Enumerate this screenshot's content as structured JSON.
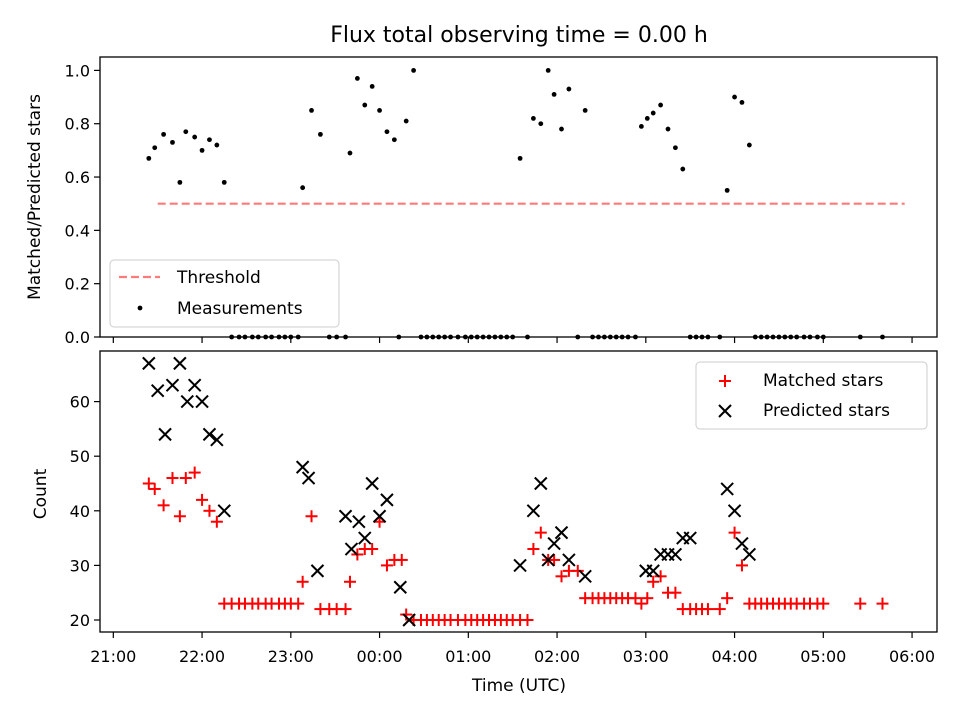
{
  "chart_data": [
    {
      "type": "scatter",
      "title": "Flux total observing time = 0.00 h",
      "ylabel": "Matched/Predicted stars",
      "xlabel": "",
      "xlim": [
        "21:00",
        "06:00"
      ],
      "ylim": [
        0,
        1.05
      ],
      "yticks": [
        "0.0",
        "0.2",
        "0.4",
        "0.6",
        "0.8",
        "1.0"
      ],
      "legend": {
        "placement": "lower-left",
        "entries": [
          "Threshold",
          "Measurements"
        ]
      },
      "threshold": {
        "name": "Threshold",
        "y": 0.5,
        "x": [
          "21:30",
          "05:55"
        ],
        "color": "#ff7a7a",
        "style": "dashed"
      },
      "series": [
        {
          "name": "Measurements",
          "color": "#000000",
          "marker": "dot",
          "points": [
            [
              "21:24",
              0.67
            ],
            [
              "21:28",
              0.71
            ],
            [
              "21:34",
              0.76
            ],
            [
              "21:40",
              0.73
            ],
            [
              "21:45",
              0.58
            ],
            [
              "21:49",
              0.77
            ],
            [
              "21:55",
              0.75
            ],
            [
              "22:00",
              0.7
            ],
            [
              "22:05",
              0.74
            ],
            [
              "22:10",
              0.72
            ],
            [
              "22:15",
              0.58
            ],
            [
              "22:20",
              0
            ],
            [
              "22:25",
              0
            ],
            [
              "22:29",
              0
            ],
            [
              "22:34",
              0
            ],
            [
              "22:38",
              0
            ],
            [
              "22:43",
              0
            ],
            [
              "22:47",
              0
            ],
            [
              "22:52",
              0
            ],
            [
              "22:56",
              0
            ],
            [
              "23:00",
              0
            ],
            [
              "23:05",
              0
            ],
            [
              "23:08",
              0.56
            ],
            [
              "23:14",
              0.85
            ],
            [
              "23:20",
              0.76
            ],
            [
              "23:26",
              0
            ],
            [
              "23:31",
              0
            ],
            [
              "23:37",
              0
            ],
            [
              "23:40",
              0.69
            ],
            [
              "23:45",
              0.97
            ],
            [
              "23:50",
              0.87
            ],
            [
              "23:55",
              0.94
            ],
            [
              "00:00",
              0.85
            ],
            [
              "00:05",
              0.77
            ],
            [
              "00:10",
              0.74
            ],
            [
              "00:18",
              0.81
            ],
            [
              "00:23",
              1.0
            ],
            [
              "00:13",
              0
            ],
            [
              "00:28",
              0
            ],
            [
              "00:32",
              0
            ],
            [
              "00:36",
              0
            ],
            [
              "00:40",
              0
            ],
            [
              "00:44",
              0
            ],
            [
              "00:48",
              0
            ],
            [
              "00:53",
              0
            ],
            [
              "00:58",
              0
            ],
            [
              "01:02",
              0
            ],
            [
              "01:06",
              0
            ],
            [
              "01:10",
              0
            ],
            [
              "01:14",
              0
            ],
            [
              "01:18",
              0
            ],
            [
              "01:22",
              0
            ],
            [
              "01:26",
              0
            ],
            [
              "01:30",
              0
            ],
            [
              "01:35",
              0.67
            ],
            [
              "01:40",
              0
            ],
            [
              "01:44",
              0.82
            ],
            [
              "01:49",
              0.8
            ],
            [
              "01:54",
              1.0
            ],
            [
              "01:58",
              0.91
            ],
            [
              "02:03",
              0.78
            ],
            [
              "02:08",
              0.93
            ],
            [
              "02:14",
              0
            ],
            [
              "02:19",
              0.85
            ],
            [
              "02:24",
              0
            ],
            [
              "02:28",
              0
            ],
            [
              "02:32",
              0
            ],
            [
              "02:36",
              0
            ],
            [
              "02:40",
              0
            ],
            [
              "02:44",
              0
            ],
            [
              "02:48",
              0
            ],
            [
              "02:53",
              0
            ],
            [
              "02:57",
              0.79
            ],
            [
              "03:01",
              0.82
            ],
            [
              "03:05",
              0.84
            ],
            [
              "03:10",
              0.87
            ],
            [
              "03:15",
              0.78
            ],
            [
              "03:20",
              0.71
            ],
            [
              "03:25",
              0.63
            ],
            [
              "03:30",
              0
            ],
            [
              "03:34",
              0
            ],
            [
              "03:38",
              0
            ],
            [
              "03:42",
              0
            ],
            [
              "03:50",
              0
            ],
            [
              "03:55",
              0.55
            ],
            [
              "04:00",
              0.9
            ],
            [
              "04:05",
              0.88
            ],
            [
              "04:10",
              0.72
            ],
            [
              "04:14",
              0
            ],
            [
              "04:18",
              0
            ],
            [
              "04:22",
              0
            ],
            [
              "04:26",
              0
            ],
            [
              "04:30",
              0
            ],
            [
              "04:34",
              0
            ],
            [
              "04:38",
              0
            ],
            [
              "04:42",
              0
            ],
            [
              "04:47",
              0
            ],
            [
              "04:51",
              0
            ],
            [
              "04:56",
              0
            ],
            [
              "05:00",
              0
            ],
            [
              "05:25",
              0
            ],
            [
              "05:40",
              0
            ]
          ]
        }
      ]
    },
    {
      "type": "scatter",
      "title": "",
      "xlabel": "Time (UTC)",
      "ylabel": "Count",
      "xlim": [
        "21:00",
        "06:00"
      ],
      "ylim": [
        18,
        68
      ],
      "xticks": [
        "21:00",
        "22:00",
        "23:00",
        "00:00",
        "01:00",
        "02:00",
        "03:00",
        "04:00",
        "05:00",
        "06:00"
      ],
      "yticks": [
        "20",
        "30",
        "40",
        "50",
        "60"
      ],
      "legend": {
        "placement": "top-right",
        "entries": [
          "Matched stars",
          "Predicted stars"
        ]
      },
      "series": [
        {
          "name": "Matched stars",
          "color": "#ff0000",
          "marker": "plus",
          "points": [
            [
              "21:24",
              45
            ],
            [
              "21:28",
              44
            ],
            [
              "21:34",
              41
            ],
            [
              "21:40",
              46
            ],
            [
              "21:45",
              39
            ],
            [
              "21:49",
              46
            ],
            [
              "21:55",
              47
            ],
            [
              "22:00",
              42
            ],
            [
              "22:05",
              40
            ],
            [
              "22:10",
              38
            ],
            [
              "22:15",
              23
            ],
            [
              "22:20",
              23
            ],
            [
              "22:25",
              23
            ],
            [
              "22:29",
              23
            ],
            [
              "22:34",
              23
            ],
            [
              "22:38",
              23
            ],
            [
              "22:43",
              23
            ],
            [
              "22:47",
              23
            ],
            [
              "22:52",
              23
            ],
            [
              "22:56",
              23
            ],
            [
              "23:00",
              23
            ],
            [
              "23:05",
              23
            ],
            [
              "23:08",
              27
            ],
            [
              "23:14",
              39
            ],
            [
              "23:20",
              22
            ],
            [
              "23:26",
              22
            ],
            [
              "23:31",
              22
            ],
            [
              "23:37",
              22
            ],
            [
              "23:40",
              27
            ],
            [
              "23:45",
              32
            ],
            [
              "23:50",
              33
            ],
            [
              "23:55",
              33
            ],
            [
              "00:00",
              38
            ],
            [
              "00:05",
              30
            ],
            [
              "00:10",
              31
            ],
            [
              "00:15",
              31
            ],
            [
              "00:18",
              21
            ],
            [
              "00:23",
              20
            ],
            [
              "00:28",
              20
            ],
            [
              "00:32",
              20
            ],
            [
              "00:36",
              20
            ],
            [
              "00:40",
              20
            ],
            [
              "00:44",
              20
            ],
            [
              "00:48",
              20
            ],
            [
              "00:53",
              20
            ],
            [
              "00:58",
              20
            ],
            [
              "01:02",
              20
            ],
            [
              "01:06",
              20
            ],
            [
              "01:10",
              20
            ],
            [
              "01:14",
              20
            ],
            [
              "01:18",
              20
            ],
            [
              "01:22",
              20
            ],
            [
              "01:26",
              20
            ],
            [
              "01:30",
              20
            ],
            [
              "01:35",
              20
            ],
            [
              "01:40",
              20
            ],
            [
              "01:44",
              33
            ],
            [
              "01:49",
              36
            ],
            [
              "01:54",
              31
            ],
            [
              "01:58",
              31
            ],
            [
              "02:03",
              28
            ],
            [
              "02:08",
              29
            ],
            [
              "02:14",
              29
            ],
            [
              "02:19",
              24
            ],
            [
              "02:24",
              24
            ],
            [
              "02:28",
              24
            ],
            [
              "02:32",
              24
            ],
            [
              "02:36",
              24
            ],
            [
              "02:40",
              24
            ],
            [
              "02:44",
              24
            ],
            [
              "02:48",
              24
            ],
            [
              "02:53",
              24
            ],
            [
              "02:57",
              23
            ],
            [
              "03:01",
              24
            ],
            [
              "03:05",
              27
            ],
            [
              "03:10",
              28
            ],
            [
              "03:15",
              25
            ],
            [
              "03:20",
              25
            ],
            [
              "03:25",
              22
            ],
            [
              "03:30",
              22
            ],
            [
              "03:34",
              22
            ],
            [
              "03:38",
              22
            ],
            [
              "03:42",
              22
            ],
            [
              "03:50",
              22
            ],
            [
              "03:55",
              24
            ],
            [
              "04:00",
              36
            ],
            [
              "04:05",
              30
            ],
            [
              "04:10",
              23
            ],
            [
              "04:14",
              23
            ],
            [
              "04:18",
              23
            ],
            [
              "04:22",
              23
            ],
            [
              "04:26",
              23
            ],
            [
              "04:30",
              23
            ],
            [
              "04:34",
              23
            ],
            [
              "04:38",
              23
            ],
            [
              "04:42",
              23
            ],
            [
              "04:47",
              23
            ],
            [
              "04:51",
              23
            ],
            [
              "04:56",
              23
            ],
            [
              "05:00",
              23
            ],
            [
              "05:25",
              23
            ],
            [
              "05:40",
              23
            ]
          ]
        },
        {
          "name": "Predicted stars",
          "color": "#000000",
          "marker": "x",
          "points": [
            [
              "21:24",
              67
            ],
            [
              "21:30",
              62
            ],
            [
              "21:35",
              54
            ],
            [
              "21:40",
              63
            ],
            [
              "21:45",
              67
            ],
            [
              "21:50",
              60
            ],
            [
              "21:55",
              63
            ],
            [
              "22:00",
              60
            ],
            [
              "22:05",
              54
            ],
            [
              "22:10",
              53
            ],
            [
              "22:15",
              40
            ],
            [
              "23:08",
              48
            ],
            [
              "23:12",
              46
            ],
            [
              "23:18",
              29
            ],
            [
              "23:37",
              39
            ],
            [
              "23:41",
              33
            ],
            [
              "23:46",
              38
            ],
            [
              "23:50",
              35
            ],
            [
              "23:55",
              45
            ],
            [
              "00:00",
              39
            ],
            [
              "00:05",
              42
            ],
            [
              "00:14",
              26
            ],
            [
              "00:20",
              20
            ],
            [
              "01:35",
              30
            ],
            [
              "01:44",
              40
            ],
            [
              "01:49",
              45
            ],
            [
              "01:54",
              31
            ],
            [
              "01:58",
              34
            ],
            [
              "02:03",
              36
            ],
            [
              "02:08",
              31
            ],
            [
              "02:19",
              28
            ],
            [
              "03:00",
              29
            ],
            [
              "03:05",
              29
            ],
            [
              "03:10",
              32
            ],
            [
              "03:15",
              32
            ],
            [
              "03:20",
              32
            ],
            [
              "03:25",
              35
            ],
            [
              "03:30",
              35
            ],
            [
              "03:55",
              44
            ],
            [
              "04:00",
              40
            ],
            [
              "04:05",
              34
            ],
            [
              "04:10",
              32
            ]
          ]
        }
      ]
    }
  ]
}
